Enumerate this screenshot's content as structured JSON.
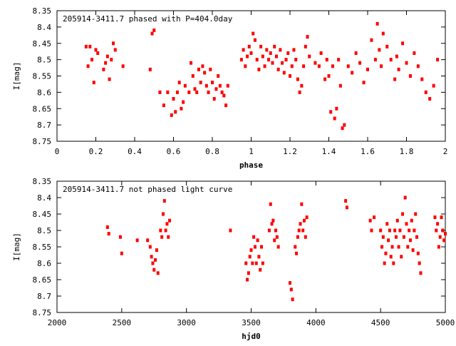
{
  "chart_data": [
    {
      "type": "scatter",
      "title": "205914-3411.7 phased with P=404.0day",
      "xlabel": "phase",
      "ylabel": "I[mag]",
      "xlim": [
        0,
        2
      ],
      "ylim": [
        8.75,
        8.35
      ],
      "y_inverted": true,
      "grid": false,
      "marker_color": "#ff0000",
      "x_ticks": [
        "0",
        "0.2",
        "0.4",
        "0.6",
        "0.8",
        "1",
        "1.2",
        "1.4",
        "1.6",
        "1.8",
        "2"
      ],
      "x_tick_values": [
        0,
        0.2,
        0.4,
        0.6,
        0.8,
        1.0,
        1.2,
        1.4,
        1.6,
        1.8,
        2.0
      ],
      "y_ticks": [
        "8.35",
        "8.4",
        "8.45",
        "8.5",
        "8.55",
        "8.6",
        "8.65",
        "8.7",
        "8.75"
      ],
      "y_tick_values": [
        8.35,
        8.4,
        8.45,
        8.5,
        8.55,
        8.6,
        8.65,
        8.7,
        8.75
      ],
      "x": [
        0.15,
        0.16,
        0.17,
        0.18,
        0.19,
        0.2,
        0.21,
        0.24,
        0.25,
        0.26,
        0.27,
        0.28,
        0.29,
        0.3,
        0.34,
        0.48,
        0.49,
        0.5,
        0.53,
        0.55,
        0.57,
        0.59,
        0.6,
        0.61,
        0.62,
        0.63,
        0.64,
        0.65,
        0.66,
        0.68,
        0.69,
        0.7,
        0.71,
        0.72,
        0.73,
        0.74,
        0.75,
        0.76,
        0.77,
        0.78,
        0.79,
        0.8,
        0.81,
        0.82,
        0.83,
        0.84,
        0.85,
        0.86,
        0.87,
        0.88,
        0.95,
        0.96,
        0.97,
        0.98,
        0.99,
        1.0,
        1.01,
        1.02,
        1.03,
        1.04,
        1.05,
        1.06,
        1.07,
        1.08,
        1.09,
        1.1,
        1.11,
        1.12,
        1.13,
        1.14,
        1.15,
        1.16,
        1.17,
        1.18,
        1.19,
        1.2,
        1.21,
        1.22,
        1.23,
        1.24,
        1.25,
        1.26,
        1.27,
        1.28,
        1.29,
        1.3,
        1.33,
        1.35,
        1.36,
        1.38,
        1.39,
        1.4,
        1.41,
        1.42,
        1.43,
        1.44,
        1.45,
        1.46,
        1.47,
        1.48,
        1.5,
        1.52,
        1.54,
        1.56,
        1.58,
        1.6,
        1.62,
        1.64,
        1.65,
        1.66,
        1.67,
        1.68,
        1.7,
        1.72,
        1.74,
        1.75,
        1.76,
        1.78,
        1.8,
        1.82,
        1.84,
        1.86,
        1.88,
        1.9,
        1.92,
        1.94,
        1.96
      ],
      "y": [
        8.46,
        8.52,
        8.46,
        8.5,
        8.57,
        8.47,
        8.48,
        8.53,
        8.51,
        8.49,
        8.56,
        8.5,
        8.45,
        8.47,
        8.52,
        8.53,
        8.42,
        8.41,
        8.6,
        8.64,
        8.6,
        8.67,
        8.62,
        8.66,
        8.6,
        8.57,
        8.65,
        8.63,
        8.58,
        8.6,
        8.51,
        8.55,
        8.59,
        8.6,
        8.53,
        8.57,
        8.52,
        8.54,
        8.58,
        8.6,
        8.53,
        8.57,
        8.62,
        8.59,
        8.55,
        8.58,
        8.6,
        8.61,
        8.64,
        8.58,
        8.5,
        8.47,
        8.52,
        8.49,
        8.46,
        8.48,
        8.42,
        8.44,
        8.5,
        8.53,
        8.46,
        8.49,
        8.52,
        8.47,
        8.5,
        8.48,
        8.51,
        8.46,
        8.49,
        8.53,
        8.47,
        8.51,
        8.54,
        8.5,
        8.48,
        8.55,
        8.52,
        8.47,
        8.5,
        8.56,
        8.6,
        8.58,
        8.52,
        8.46,
        8.43,
        8.49,
        8.51,
        8.52,
        8.48,
        8.56,
        8.5,
        8.55,
        8.66,
        8.52,
        8.68,
        8.65,
        8.5,
        8.58,
        8.71,
        8.7,
        8.52,
        8.54,
        8.48,
        8.51,
        8.57,
        8.53,
        8.44,
        8.5,
        8.39,
        8.47,
        8.52,
        8.42,
        8.46,
        8.5,
        8.56,
        8.49,
        8.53,
        8.45,
        8.51,
        8.55,
        8.48,
        8.52,
        8.56,
        8.6,
        8.62,
        8.58,
        8.5
      ]
    },
    {
      "type": "scatter",
      "title": "205914-3411.7 not phased light curve",
      "xlabel": "hjd0",
      "ylabel": "I[mag]",
      "xlim": [
        2000,
        5000
      ],
      "ylim": [
        8.75,
        8.35
      ],
      "y_inverted": true,
      "grid": false,
      "marker_color": "#ff0000",
      "x_ticks": [
        "2000",
        "2500",
        "3000",
        "3500",
        "4000",
        "4500",
        "5000"
      ],
      "x_tick_values": [
        2000,
        2500,
        3000,
        3500,
        4000,
        4500,
        5000
      ],
      "y_ticks": [
        "8.35",
        "8.4",
        "8.45",
        "8.5",
        "8.55",
        "8.6",
        "8.65",
        "8.7",
        "8.75"
      ],
      "y_tick_values": [
        8.35,
        8.4,
        8.45,
        8.5,
        8.55,
        8.6,
        8.65,
        8.7,
        8.75
      ],
      "x": [
        2390,
        2400,
        2490,
        2500,
        2620,
        2700,
        2720,
        2730,
        2740,
        2750,
        2760,
        2770,
        2780,
        2800,
        2810,
        2820,
        2830,
        2840,
        2850,
        2860,
        2870,
        3340,
        3460,
        3470,
        3480,
        3490,
        3500,
        3510,
        3520,
        3530,
        3540,
        3550,
        3560,
        3570,
        3580,
        3590,
        3640,
        3650,
        3660,
        3670,
        3680,
        3690,
        3700,
        3710,
        3800,
        3810,
        3820,
        3840,
        3850,
        3860,
        3870,
        3880,
        3890,
        3900,
        3910,
        3920,
        3930,
        4230,
        4240,
        4420,
        4430,
        4450,
        4500,
        4510,
        4520,
        4530,
        4540,
        4550,
        4560,
        4570,
        4580,
        4590,
        4600,
        4610,
        4620,
        4630,
        4640,
        4650,
        4660,
        4670,
        4680,
        4690,
        4700,
        4710,
        4720,
        4730,
        4740,
        4750,
        4760,
        4770,
        4780,
        4790,
        4800,
        4810,
        4920,
        4930,
        4940,
        4950,
        4960,
        4970,
        4980,
        4990,
        5000
      ],
      "y": [
        8.49,
        8.51,
        8.52,
        8.57,
        8.53,
        8.53,
        8.55,
        8.58,
        8.6,
        8.62,
        8.59,
        8.56,
        8.63,
        8.5,
        8.52,
        8.45,
        8.41,
        8.5,
        8.48,
        8.52,
        8.47,
        8.5,
        8.6,
        8.65,
        8.63,
        8.58,
        8.56,
        8.6,
        8.52,
        8.55,
        8.6,
        8.53,
        8.58,
        8.62,
        8.55,
        8.6,
        8.5,
        8.42,
        8.48,
        8.47,
        8.53,
        8.5,
        8.52,
        8.55,
        8.66,
        8.68,
        8.71,
        8.55,
        8.57,
        8.52,
        8.5,
        8.48,
        8.42,
        8.5,
        8.47,
        8.52,
        8.46,
        8.41,
        8.43,
        8.47,
        8.5,
        8.46,
        8.5,
        8.55,
        8.52,
        8.6,
        8.57,
        8.48,
        8.53,
        8.5,
        8.58,
        8.55,
        8.6,
        8.5,
        8.52,
        8.47,
        8.55,
        8.5,
        8.58,
        8.45,
        8.52,
        8.4,
        8.48,
        8.55,
        8.5,
        8.53,
        8.47,
        8.56,
        8.5,
        8.45,
        8.52,
        8.57,
        8.6,
        8.63,
        8.46,
        8.5,
        8.48,
        8.55,
        8.52,
        8.46,
        8.5,
        8.53,
        8.51
      ]
    }
  ]
}
